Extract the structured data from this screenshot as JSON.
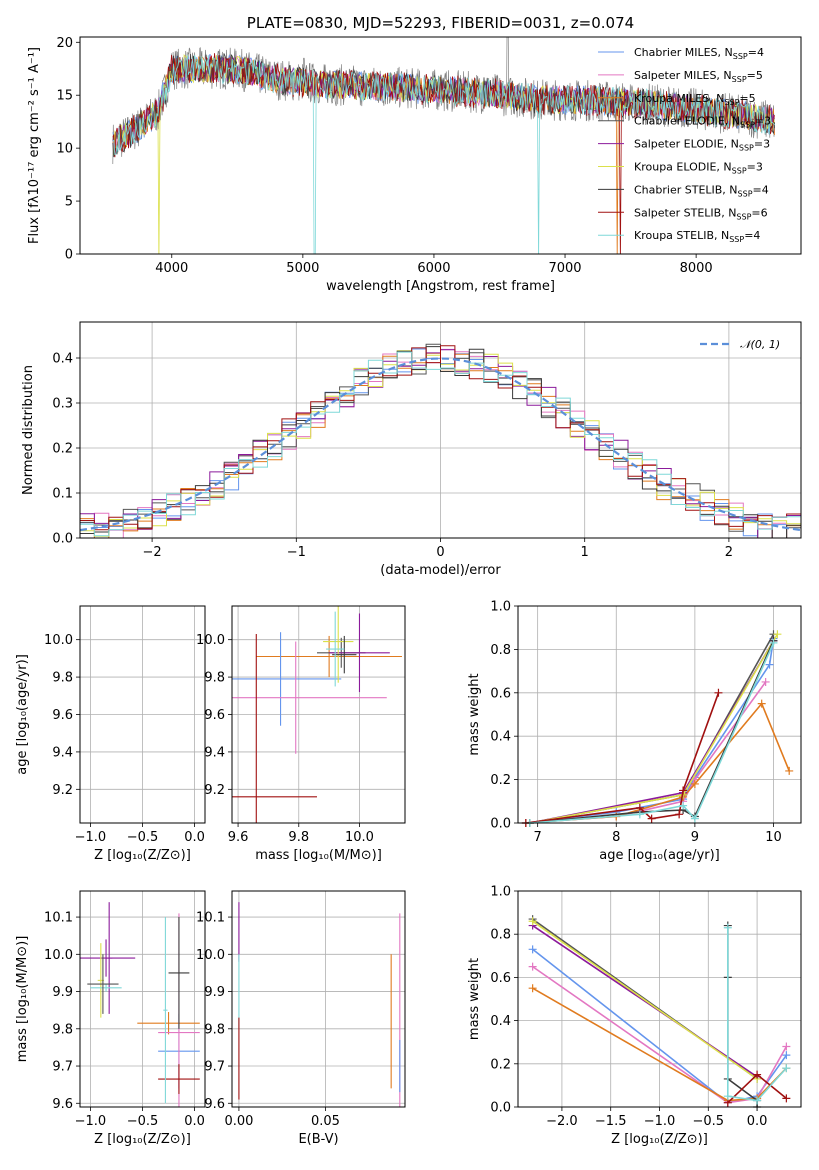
{
  "colors": {
    "chabrier_miles": "#6495ed",
    "salpeter_miles": "#e377c2",
    "kroupa_miles": "#e07b1f",
    "chabrier_elodie": "#555555",
    "salpeter_elodie": "#8b1a9b",
    "kroupa_elodie": "#dbe04a",
    "chabrier_stelib": "#3a3a3a",
    "salpeter_stelib": "#a01010",
    "kroupa_stelib": "#7fd8d8",
    "normal_curve": "#5b8fd9"
  },
  "legend_labels": [
    {
      "model": "Chabrier MILES, N",
      "n": "=4"
    },
    {
      "model": "Salpeter MILES, N",
      "n": "=5"
    },
    {
      "model": "Kroupa MILES, N",
      "n": "=5"
    },
    {
      "model": "Chabrier ELODIE, N",
      "n": "=3"
    },
    {
      "model": "Salpeter ELODIE, N",
      "n": "=3"
    },
    {
      "model": "Kroupa ELODIE, N",
      "n": "=3"
    },
    {
      "model": "Chabrier STELIB, N",
      "n": "=4"
    },
    {
      "model": "Salpeter STELIB, N",
      "n": "=6"
    },
    {
      "model": "Kroupa STELIB, N",
      "n": "=4"
    }
  ],
  "legend_sub": "SSP",
  "chart_data": [
    {
      "type": "line",
      "title": "PLATE=0830, MJD=52293, FIBERID=0031, z=0.074",
      "xlabel": "wavelength [Angstrom, rest frame]",
      "ylabel": "Flux [fλ10⁻¹⁷ erg cm⁻² s⁻¹ A⁻¹]",
      "xlim": [
        3300,
        8800
      ],
      "ylim": [
        0,
        20.5
      ],
      "xticks": [
        "4000",
        "5000",
        "6000",
        "7000",
        "8000"
      ],
      "yticks": [
        "0",
        "5",
        "10",
        "15",
        "20"
      ],
      "continuum": [
        [
          3550,
          10.5
        ],
        [
          3700,
          11.5
        ],
        [
          3900,
          13.5
        ],
        [
          4000,
          17.5
        ],
        [
          4300,
          17.5
        ],
        [
          4500,
          17.5
        ],
        [
          4800,
          16.5
        ],
        [
          5200,
          16.0
        ],
        [
          5600,
          15.8
        ],
        [
          6000,
          15.5
        ],
        [
          6400,
          15.2
        ],
        [
          6800,
          14.6
        ],
        [
          7200,
          14.5
        ],
        [
          7600,
          14.2
        ],
        [
          8000,
          13.7
        ],
        [
          8400,
          13.0
        ],
        [
          8600,
          12.5
        ]
      ],
      "legend_position": "right"
    },
    {
      "type": "line",
      "xlabel": "(data-model)/error",
      "ylabel": "Normed distribution",
      "xlim": [
        -2.5,
        2.5
      ],
      "ylim": [
        0,
        0.48
      ],
      "xticks": [
        "−2",
        "−1",
        "0",
        "1",
        "2"
      ],
      "yticks": [
        "0.0",
        "0.1",
        "0.2",
        "0.3",
        "0.4"
      ],
      "legend": "𝒩(0, 1)",
      "series": [
        {
          "name": "𝒩(0, 1)",
          "mean": 0,
          "sigma": 1
        }
      ]
    },
    {
      "type": "scatter",
      "xlabel": "Z [log₁₀(Z/Z⊙)]",
      "ylabel": "age  [log₁₀(age/yr)]",
      "xlim": [
        -1.1,
        0.1
      ],
      "ylim": [
        9.02,
        10.18
      ],
      "xticks": [
        "−1.0",
        "−0.5",
        "0.0"
      ],
      "yticks": [
        "9.2",
        "9.4",
        "9.6",
        "9.8",
        "10.0"
      ],
      "points": [
        {
          "x": -0.85,
          "y": 9.93,
          "xerr": 0.28,
          "yerr": 0.08,
          "model": "chabrier_elodie"
        },
        {
          "x": -0.82,
          "y": 9.93,
          "xerr": 0.25,
          "yerr": 0.2,
          "model": "salpeter_elodie"
        },
        {
          "x": -0.85,
          "y": 9.99,
          "xerr": 0.17,
          "yerr": 0.22,
          "model": "kroupa_elodie"
        },
        {
          "x": -0.9,
          "y": 9.95,
          "xerr": 0.05,
          "yerr": 0.2,
          "model": "kroupa_stelib"
        },
        {
          "x": -0.28,
          "y": 9.91,
          "xerr": 0.26,
          "yerr": 0.11,
          "model": "kroupa_miles"
        },
        {
          "x": -0.15,
          "y": 9.79,
          "xerr": 0.25,
          "yerr": 0.25,
          "model": "chabrier_miles"
        },
        {
          "x": -0.15,
          "y": 9.69,
          "xerr": 0.2,
          "yerr": 0.33,
          "model": "salpeter_miles"
        },
        {
          "x": -0.17,
          "y": 9.92,
          "xerr": 0.1,
          "yerr": 0.1,
          "model": "chabrier_stelib"
        },
        {
          "x": -0.15,
          "y": 9.16,
          "xerr": 0.2,
          "yerr": 0.87,
          "model": "salpeter_stelib"
        }
      ]
    },
    {
      "type": "scatter",
      "xlabel": "mass [log₁₀(M/M⊙)]",
      "ylabel": "",
      "xlim": [
        9.58,
        10.15
      ],
      "ylim": [
        9.02,
        10.18
      ],
      "xticks": [
        "9.6",
        "9.8",
        "10.0"
      ],
      "yticks": [
        "9.2",
        "9.4",
        "9.6",
        "9.8",
        "10.0"
      ],
      "points": [
        {
          "x": 9.9,
          "y": 9.91,
          "xerr": 0.24,
          "yerr": 0.11,
          "model": "kroupa_miles"
        },
        {
          "x": 9.74,
          "y": 9.79,
          "xerr": 0.2,
          "yerr": 0.25,
          "model": "chabrier_miles"
        },
        {
          "x": 9.79,
          "y": 9.69,
          "xerr": 0.3,
          "yerr": 0.3,
          "model": "salpeter_miles"
        },
        {
          "x": 9.94,
          "y": 9.93,
          "xerr": 0.08,
          "yerr": 0.08,
          "model": "chabrier_elodie"
        },
        {
          "x": 10.0,
          "y": 9.93,
          "xerr": 0.1,
          "yerr": 0.21,
          "model": "salpeter_elodie"
        },
        {
          "x": 9.93,
          "y": 9.99,
          "xerr": 0.05,
          "yerr": 0.22,
          "model": "kroupa_elodie"
        },
        {
          "x": 9.95,
          "y": 9.92,
          "xerr": 0.04,
          "yerr": 0.1,
          "model": "chabrier_stelib"
        },
        {
          "x": 9.66,
          "y": 9.16,
          "xerr": 0.2,
          "yerr": 0.87,
          "model": "salpeter_stelib"
        },
        {
          "x": 9.92,
          "y": 9.95,
          "xerr": 0.03,
          "yerr": 0.2,
          "model": "kroupa_stelib"
        }
      ]
    },
    {
      "type": "line",
      "xlabel": "age  [log₁₀(age/yr)]",
      "ylabel": "mass weight",
      "xlim": [
        6.75,
        10.35
      ],
      "ylim": [
        0,
        1.0
      ],
      "xticks": [
        "7",
        "8",
        "9",
        "10"
      ],
      "yticks": [
        "0.0",
        "0.2",
        "0.4",
        "0.6",
        "0.8",
        "1.0"
      ],
      "series": [
        {
          "model": "chabrier_miles",
          "x": [
            6.85,
            8.0,
            8.85,
            9.0,
            9.95,
            10.0
          ],
          "y": [
            0.0,
            0.05,
            0.11,
            0.21,
            0.73,
            0.85
          ]
        },
        {
          "model": "salpeter_miles",
          "x": [
            6.85,
            8.0,
            8.85,
            9.0,
            9.9
          ],
          "y": [
            0.0,
            0.03,
            0.1,
            0.2,
            0.65
          ]
        },
        {
          "model": "kroupa_miles",
          "x": [
            6.85,
            8.0,
            8.85,
            9.0,
            9.85,
            10.2
          ],
          "y": [
            0.0,
            0.03,
            0.12,
            0.18,
            0.55,
            0.24
          ]
        },
        {
          "model": "chabrier_elodie",
          "x": [
            6.9,
            8.85,
            10.0
          ],
          "y": [
            0.0,
            0.13,
            0.87
          ]
        },
        {
          "model": "salpeter_elodie",
          "x": [
            6.9,
            8.85,
            10.0
          ],
          "y": [
            0.0,
            0.14,
            0.84
          ]
        },
        {
          "model": "kroupa_elodie",
          "x": [
            6.9,
            8.85,
            10.05
          ],
          "y": [
            0.0,
            0.13,
            0.87
          ]
        },
        {
          "model": "chabrier_stelib",
          "x": [
            6.9,
            8.3,
            8.85,
            9.0,
            10.0
          ],
          "y": [
            0.0,
            0.05,
            0.06,
            0.03,
            0.84
          ]
        },
        {
          "model": "salpeter_stelib",
          "x": [
            6.85,
            8.3,
            8.45,
            8.8,
            8.85,
            9.3
          ],
          "y": [
            0.0,
            0.07,
            0.02,
            0.04,
            0.15,
            0.6
          ]
        },
        {
          "model": "kroupa_stelib",
          "x": [
            6.9,
            8.3,
            8.85,
            9.0,
            10.0
          ],
          "y": [
            0.0,
            0.04,
            0.08,
            0.02,
            0.83
          ]
        }
      ]
    },
    {
      "type": "scatter",
      "xlabel": "Z [log₁₀(Z/Z⊙)]",
      "ylabel": "mass [log₁₀(M/M⊙)]",
      "xlim": [
        -1.1,
        0.1
      ],
      "ylim": [
        9.59,
        10.17
      ],
      "xticks": [
        "−1.0",
        "−0.5",
        "0.0"
      ],
      "yticks": [
        "9.6",
        "9.7",
        "9.8",
        "9.9",
        "10.0",
        "10.1"
      ],
      "points": [
        {
          "x": -0.85,
          "y": 9.99,
          "xerr": 0.28,
          "yerr": 0.05,
          "model": "salpeter_elodie"
        },
        {
          "x": -0.82,
          "y": 9.99,
          "xerr": 0.03,
          "yerr": 0.15,
          "model": "salpeter_elodie"
        },
        {
          "x": -0.9,
          "y": 9.93,
          "xerr": 0.03,
          "yerr": 0.1,
          "model": "kroupa_elodie"
        },
        {
          "x": -0.85,
          "y": 9.91,
          "xerr": 0.15,
          "yerr": 0.01,
          "model": "kroupa_stelib"
        },
        {
          "x": -0.88,
          "y": 9.92,
          "xerr": 0.15,
          "yerr": 0.08,
          "model": "chabrier_elodie"
        },
        {
          "x": -0.25,
          "y": 9.815,
          "xerr": 0.3,
          "yerr": 0.03,
          "model": "kroupa_miles"
        },
        {
          "x": -0.15,
          "y": 9.74,
          "xerr": 0.2,
          "yerr": 0.1,
          "model": "chabrier_miles"
        },
        {
          "x": -0.15,
          "y": 9.79,
          "xerr": 0.2,
          "yerr": 0.32,
          "model": "salpeter_miles"
        },
        {
          "x": -0.15,
          "y": 9.95,
          "xerr": 0.1,
          "yerr": 0.15,
          "model": "chabrier_stelib"
        },
        {
          "x": -0.15,
          "y": 9.665,
          "xerr": 0.2,
          "yerr": 0.04,
          "model": "salpeter_stelib"
        },
        {
          "x": -0.28,
          "y": 9.85,
          "xerr": 0.02,
          "yerr": 0.25,
          "model": "kroupa_stelib"
        }
      ]
    },
    {
      "type": "scatter",
      "xlabel": "E(B-V)",
      "ylabel": "",
      "xlim": [
        -0.004,
        0.096
      ],
      "ylim": [
        9.59,
        10.17
      ],
      "xticks": [
        "0.00",
        "0.05"
      ],
      "yticks": [
        "9.6",
        "9.7",
        "9.8",
        "9.9",
        "10.0",
        "10.1"
      ],
      "points": [
        {
          "x": 0.0,
          "y": 10.06,
          "xerr": 0,
          "yerr": 0.08,
          "model": "salpeter_elodie"
        },
        {
          "x": 0.0,
          "y": 9.9,
          "xerr": 0,
          "yerr": 0.1,
          "model": "kroupa_stelib"
        },
        {
          "x": 0.0,
          "y": 9.72,
          "xerr": 0,
          "yerr": 0.11,
          "model": "salpeter_stelib"
        },
        {
          "x": 0.088,
          "y": 9.82,
          "xerr": 0,
          "yerr": 0.18,
          "model": "kroupa_miles"
        },
        {
          "x": 0.093,
          "y": 9.85,
          "xerr": 0,
          "yerr": 0.26,
          "model": "salpeter_miles"
        },
        {
          "x": 0.093,
          "y": 9.7,
          "xerr": 0,
          "yerr": 0.07,
          "model": "chabrier_miles"
        }
      ]
    },
    {
      "type": "line",
      "xlabel": "Z [log₁₀(Z/Z⊙)]",
      "ylabel": "mass weight",
      "xlim": [
        -2.45,
        0.45
      ],
      "ylim": [
        0,
        1.0
      ],
      "xticks": [
        "−2.0",
        "−1.5",
        "−1.0",
        "−0.5",
        "0.0"
      ],
      "yticks": [
        "0.0",
        "0.2",
        "0.4",
        "0.6",
        "0.8",
        "1.0"
      ],
      "series": [
        {
          "model": "chabrier_miles",
          "x": [
            -2.3,
            -0.3,
            0.0,
            0.3
          ],
          "y": [
            0.73,
            0.02,
            0.05,
            0.24
          ]
        },
        {
          "model": "salpeter_miles",
          "x": [
            -2.3,
            -0.3,
            0.0,
            0.3
          ],
          "y": [
            0.65,
            0.02,
            0.04,
            0.28
          ]
        },
        {
          "model": "kroupa_miles",
          "x": [
            -2.3,
            -0.3,
            0.0,
            0.3
          ],
          "y": [
            0.55,
            0.03,
            0.04,
            0.18
          ]
        },
        {
          "model": "chabrier_elodie",
          "x": [
            -2.3,
            0.0
          ],
          "y": [
            0.87,
            0.13
          ]
        },
        {
          "model": "salpeter_elodie",
          "x": [
            -2.3,
            0.0
          ],
          "y": [
            0.84,
            0.14
          ]
        },
        {
          "model": "kroupa_elodie",
          "x": [
            -2.3,
            0.0
          ],
          "y": [
            0.86,
            0.13
          ]
        },
        {
          "model": "chabrier_stelib",
          "x": [
            -0.3,
            -0.3,
            -0.3,
            0.0,
            0.0
          ],
          "y": [
            0.84,
            0.6,
            0.13,
            0.03,
            0.0
          ]
        },
        {
          "model": "salpeter_stelib",
          "x": [
            -0.3,
            0.0,
            0.3
          ],
          "y": [
            0.02,
            0.15,
            0.04
          ]
        },
        {
          "model": "kroupa_stelib",
          "x": [
            -0.3,
            -0.3,
            0.0,
            0.3
          ],
          "y": [
            0.83,
            0.05,
            0.03,
            0.18
          ]
        }
      ]
    }
  ]
}
